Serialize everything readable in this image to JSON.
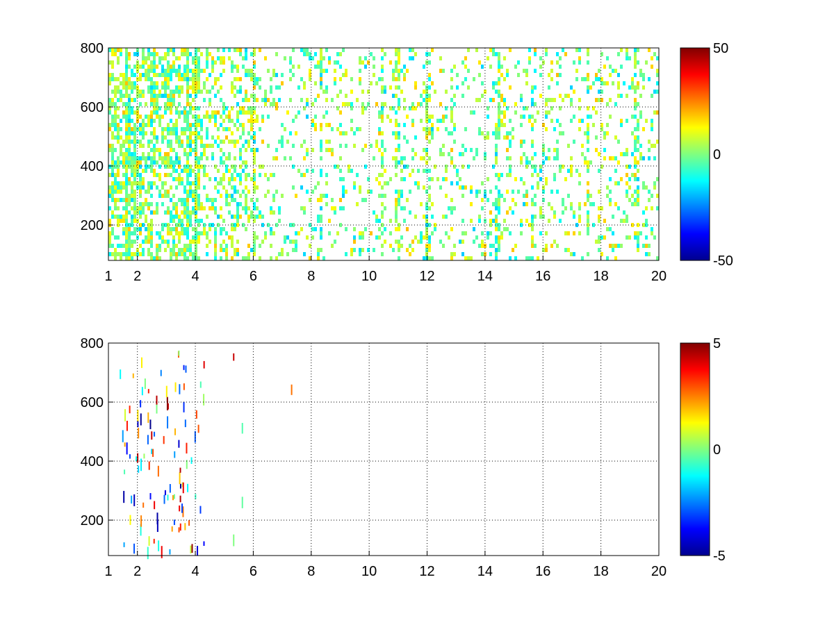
{
  "chart_data": [
    {
      "type": "heatmap",
      "title": "",
      "xlabel": "",
      "ylabel": "",
      "xlim": [
        1,
        20
      ],
      "ylim": [
        80,
        800
      ],
      "xticks": [
        1,
        2,
        4,
        6,
        8,
        10,
        12,
        14,
        16,
        18,
        20
      ],
      "xtick_labels": [
        "1",
        "2",
        "4",
        "6",
        "8",
        "10",
        "12",
        "14",
        "16",
        "18",
        "20"
      ],
      "yticks": [
        200,
        400,
        600,
        800
      ],
      "ytick_labels": [
        "200",
        "400",
        "600",
        "800"
      ],
      "grid": true,
      "colormap": "jet",
      "clim": [
        -50,
        50
      ],
      "colorbar_ticks": [
        -50,
        0,
        50
      ],
      "colorbar_labels": [
        "-50",
        "0",
        "50"
      ],
      "pattern": "dense sparse heatmap; values mostly between -15 and +15; very dense columns for x between 1 and 4, becoming sparser with larger x; vertical streaks near x = 4, 6, 10.5, 12, 14.5, 19"
    },
    {
      "type": "heatmap",
      "title": "",
      "xlabel": "",
      "ylabel": "",
      "xlim": [
        1,
        20
      ],
      "ylim": [
        80,
        800
      ],
      "xticks": [
        1,
        2,
        4,
        6,
        8,
        10,
        12,
        14,
        16,
        18,
        20
      ],
      "xtick_labels": [
        "1",
        "2",
        "4",
        "6",
        "8",
        "10",
        "12",
        "14",
        "16",
        "18",
        "20"
      ],
      "yticks": [
        200,
        400,
        600,
        800
      ],
      "ytick_labels": [
        "200",
        "400",
        "600",
        "800"
      ],
      "grid": true,
      "colormap": "jet",
      "clim": [
        -5,
        5
      ],
      "colorbar_ticks": [
        -5,
        0,
        5
      ],
      "colorbar_labels": [
        "-5",
        "0",
        "5"
      ],
      "pattern": "very sparse thin vertical ticks, mostly at x between 1.3 and 4.3, a few near x = 5.3, 5.6 and 7.3"
    }
  ]
}
